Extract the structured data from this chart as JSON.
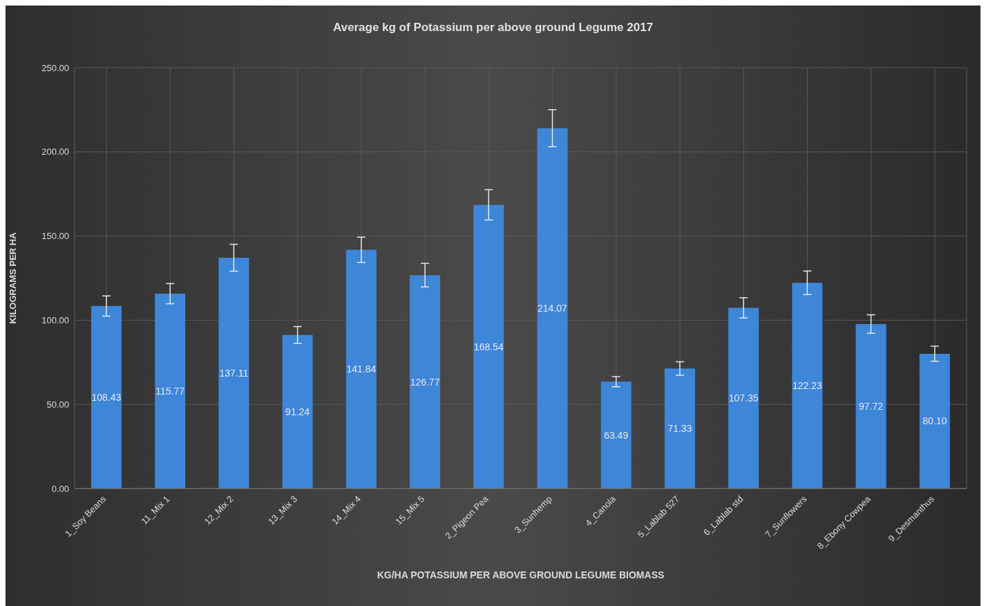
{
  "chart_data": {
    "type": "bar",
    "title": "Average kg of Potassium per above ground Legume 2017",
    "xlabel": "KG/HA POTASSIUM PER ABOVE GROUND LEGUME BIOMASS",
    "ylabel": "KILOGRAMS PER HA",
    "categories": [
      "1_Soy Beans",
      "11_Mix 1",
      "12_Mix 2",
      "13_Mix 3",
      "14_Mix 4",
      "15_Mix 5",
      "2_Pigeon Pea",
      "3_Sunhemp",
      "4_Canola",
      "5_Lablab 527",
      "6_Lablab std",
      "7_Sunflowers",
      "8_Ebony Cowpea",
      "9_Desmanthus"
    ],
    "values": [
      108.43,
      115.77,
      137.11,
      91.24,
      141.84,
      126.77,
      168.54,
      214.07,
      63.49,
      71.33,
      107.35,
      122.23,
      97.72,
      80.1
    ],
    "value_labels": [
      "108.43",
      "115.77",
      "137.11",
      "91.24",
      "141.84",
      "126.77",
      "168.54",
      "214.07",
      "63.49",
      "71.33",
      "107.35",
      "122.23",
      "97.72",
      "80.10"
    ],
    "errors": [
      6,
      6,
      8,
      5,
      7.5,
      7,
      9,
      11,
      3,
      4,
      6,
      7,
      5.5,
      4.5
    ],
    "color": "#3e86d8",
    "ylim": [
      0,
      250
    ],
    "yticks": [
      {
        "value": 0,
        "label": "0.00"
      },
      {
        "value": 50,
        "label": "50.00"
      },
      {
        "value": 100,
        "label": "100.00"
      },
      {
        "value": 150,
        "label": "150.00"
      },
      {
        "value": 200,
        "label": "200.00"
      },
      {
        "value": 250,
        "label": "250.00"
      }
    ],
    "grid": true,
    "legend": false
  }
}
